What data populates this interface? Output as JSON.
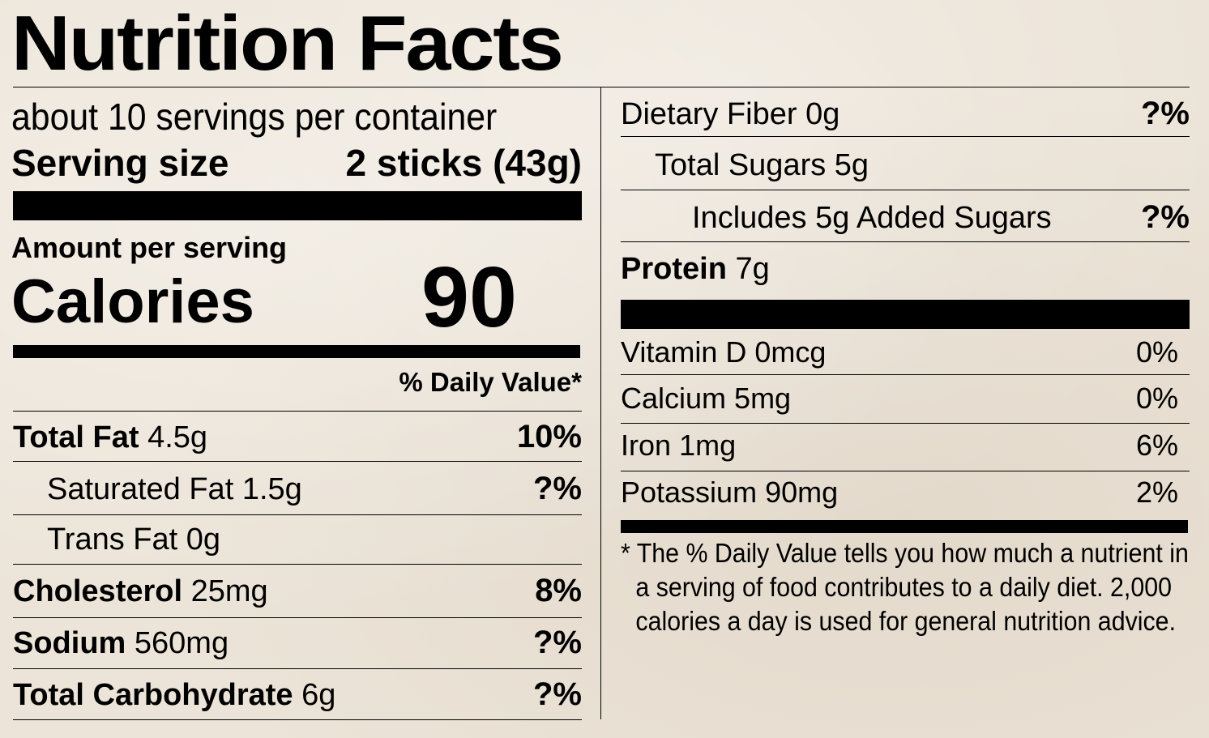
{
  "title": "Nutrition Facts",
  "servings_per_container": "about 10 servings per container",
  "serving_size": {
    "label": "Serving size",
    "value": "2 sticks (43g)"
  },
  "amount_per_serving": "Amount per serving",
  "calories": {
    "label": "Calories",
    "value": "90"
  },
  "daily_value_header": "% Daily Value*",
  "left_nutrients": [
    {
      "name": "Total Fat",
      "amount": "4.5g",
      "dv": "10%"
    },
    {
      "name": "Saturated Fat",
      "amount": "1.5g",
      "dv": "?%"
    },
    {
      "name": "Trans Fat",
      "amount": "0g",
      "dv": ""
    },
    {
      "name": "Cholesterol",
      "amount": "25mg",
      "dv": "8%"
    },
    {
      "name": "Sodium",
      "amount": "560mg",
      "dv": "?%"
    },
    {
      "name": "Total Carbohydrate",
      "amount": "6g",
      "dv": "?%"
    }
  ],
  "right_nutrients": [
    {
      "name": "Dietary Fiber",
      "amount": "0g",
      "dv": "?%"
    },
    {
      "name": "Total Sugars",
      "amount": "5g",
      "dv": ""
    },
    {
      "name": "Includes 5g Added Sugars",
      "amount": "",
      "dv": "?%"
    },
    {
      "name": "Protein",
      "amount": "7g",
      "dv": ""
    }
  ],
  "vitamins": [
    {
      "name": "Vitamin D",
      "amount": "0mcg",
      "dv": "0%"
    },
    {
      "name": "Calcium",
      "amount": "5mg",
      "dv": "0%"
    },
    {
      "name": "Iron",
      "amount": "1mg",
      "dv": "6%"
    },
    {
      "name": "Potassium",
      "amount": "90mg",
      "dv": "2%"
    }
  ],
  "footnote": {
    "line1": "* The % Daily Value tells you how much a nutrient in",
    "line2": "a serving of food contributes to a daily diet. 2,000",
    "line3": "calories a day is used for general nutrition advice."
  },
  "colors": {
    "background": "#ece4d8",
    "ink": "#000000"
  }
}
